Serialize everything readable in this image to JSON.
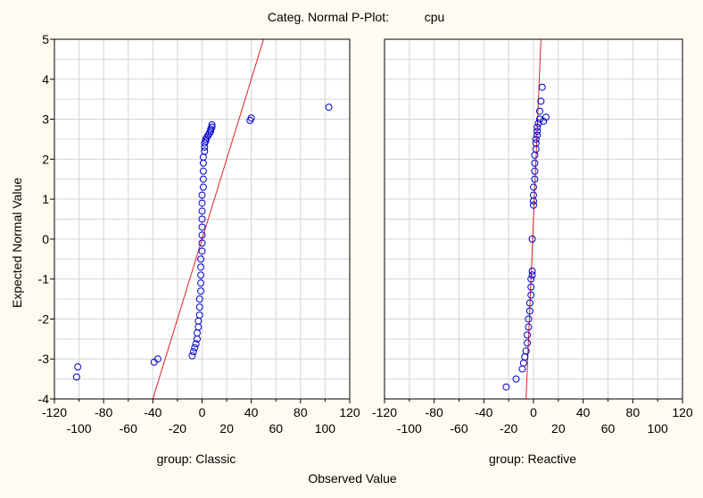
{
  "title": "Categ. Normal P-Plot:",
  "variable": "cpu",
  "y_axis_label": "Expected Normal Value",
  "x_axis_label": "Observed Value",
  "colors": {
    "background": "#fffbf0",
    "plot_bg": "#ffffff",
    "grid": "#d4d4d4",
    "marker": "#0000cc",
    "fit_line": "#e02020"
  },
  "chart_data": [
    {
      "type": "scatter",
      "panel_label": "group: Classic",
      "xlim": [
        -120,
        120
      ],
      "ylim": [
        -4,
        5
      ],
      "x_ticks_upper": [
        "-120",
        "-80",
        "-40",
        "0",
        "40",
        "80",
        "120"
      ],
      "x_ticks_lower": [
        "-100",
        "-60",
        "-20",
        "20",
        "60",
        "100"
      ],
      "y_ticks": [
        "-4",
        "-3",
        "-2",
        "-1",
        "0",
        "1",
        "2",
        "3",
        "4",
        "5"
      ],
      "grid": true,
      "fit_line": {
        "x": [
          -40,
          50
        ],
        "y": [
          -4.0,
          5.0
        ]
      },
      "points": {
        "x": [
          -102,
          -101,
          -39,
          -36,
          -8,
          -7,
          -6,
          -5,
          -4,
          -4,
          -3,
          -3,
          -2,
          -2,
          -2,
          -1,
          -1,
          -1,
          -1,
          -1,
          0,
          0,
          0,
          0,
          0,
          0,
          0,
          0,
          1,
          1,
          1,
          1,
          1,
          2,
          2,
          2,
          3,
          3,
          4,
          5,
          6,
          7,
          7,
          8,
          8,
          39,
          40,
          103
        ],
        "y": [
          -3.45,
          -3.2,
          -3.08,
          -3.0,
          -2.92,
          -2.82,
          -2.72,
          -2.62,
          -2.5,
          -2.35,
          -2.2,
          -2.05,
          -1.9,
          -1.7,
          -1.5,
          -1.3,
          -1.1,
          -0.9,
          -0.7,
          -0.5,
          -0.3,
          -0.1,
          0.1,
          0.3,
          0.5,
          0.7,
          0.9,
          1.1,
          1.3,
          1.5,
          1.7,
          1.9,
          2.05,
          2.2,
          2.3,
          2.4,
          2.45,
          2.5,
          2.55,
          2.6,
          2.65,
          2.7,
          2.75,
          2.8,
          2.86,
          2.97,
          3.03,
          3.3
        ]
      }
    },
    {
      "type": "scatter",
      "panel_label": "group: Reactive",
      "xlim": [
        -120,
        120
      ],
      "ylim": [
        -4,
        5
      ],
      "x_ticks_upper": [
        "-120",
        "-80",
        "-40",
        "0",
        "40",
        "80",
        "120"
      ],
      "x_ticks_lower": [
        "-100",
        "-60",
        "-20",
        "20",
        "60",
        "100"
      ],
      "y_ticks": [],
      "grid": true,
      "fit_line": {
        "x": [
          -6,
          6
        ],
        "y": [
          -4.0,
          5.0
        ]
      },
      "points": {
        "x": [
          -22,
          -14,
          -9,
          -8,
          -7,
          -6,
          -5,
          -5,
          -4,
          -4,
          -3,
          -3,
          -2,
          -2,
          -2,
          -1,
          -1,
          -1,
          0,
          0,
          0,
          0,
          1,
          1,
          1,
          1,
          2,
          2,
          2,
          3,
          3,
          3,
          4,
          5,
          5,
          6,
          7,
          8,
          10
        ],
        "y": [
          -3.7,
          -3.5,
          -3.25,
          -3.1,
          -2.95,
          -2.8,
          -2.6,
          -2.4,
          -2.2,
          -2.0,
          -1.8,
          -1.6,
          -1.4,
          -1.2,
          -1.0,
          -0.9,
          -0.8,
          0.0,
          0.85,
          0.95,
          1.1,
          1.3,
          1.5,
          1.7,
          1.9,
          2.1,
          2.25,
          2.4,
          2.5,
          2.6,
          2.7,
          2.8,
          2.9,
          3.0,
          3.2,
          3.45,
          3.8,
          2.95,
          3.05
        ]
      }
    }
  ]
}
